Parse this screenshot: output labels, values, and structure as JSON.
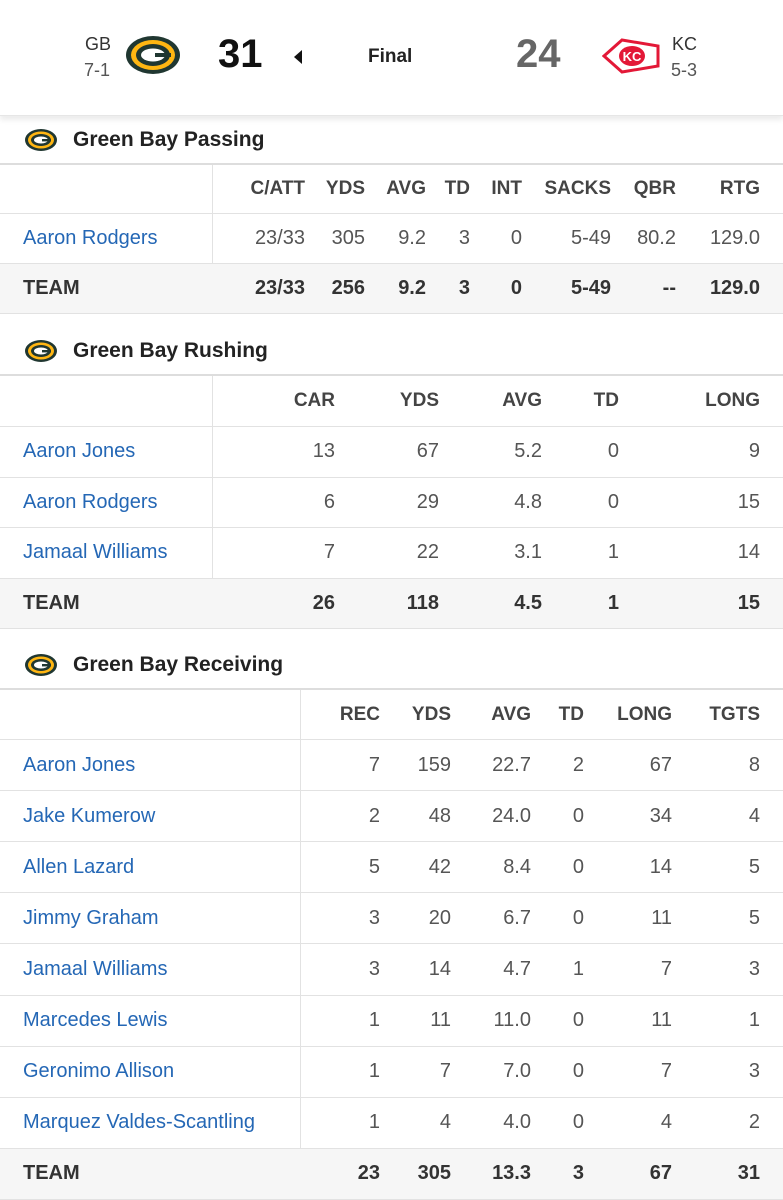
{
  "header": {
    "home": {
      "abbr": "GB",
      "record": "7-1",
      "score": "31"
    },
    "status": "Final",
    "away": {
      "abbr": "KC",
      "record": "5-3",
      "score": "24"
    }
  },
  "sections": [
    {
      "title": "Green Bay Passing",
      "columns": [
        "C/ATT",
        "YDS",
        "AVG",
        "TD",
        "INT",
        "SACKS",
        "QBR",
        "RTG"
      ],
      "rows": [
        {
          "name": "Aaron Rodgers",
          "stats": [
            "23/33",
            "305",
            "9.2",
            "3",
            "0",
            "5-49",
            "80.2",
            "129.0"
          ]
        },
        {
          "name": "TEAM",
          "stats": [
            "23/33",
            "256",
            "9.2",
            "3",
            "0",
            "5-49",
            "--",
            "129.0"
          ]
        }
      ]
    },
    {
      "title": "Green Bay Rushing",
      "columns": [
        "CAR",
        "YDS",
        "AVG",
        "TD",
        "LONG"
      ],
      "rows": [
        {
          "name": "Aaron Jones",
          "stats": [
            "13",
            "67",
            "5.2",
            "0",
            "9"
          ]
        },
        {
          "name": "Aaron Rodgers",
          "stats": [
            "6",
            "29",
            "4.8",
            "0",
            "15"
          ]
        },
        {
          "name": "Jamaal Williams",
          "stats": [
            "7",
            "22",
            "3.1",
            "1",
            "14"
          ]
        },
        {
          "name": "TEAM",
          "stats": [
            "26",
            "118",
            "4.5",
            "1",
            "15"
          ]
        }
      ]
    },
    {
      "title": "Green Bay Receiving",
      "columns": [
        "REC",
        "YDS",
        "AVG",
        "TD",
        "LONG",
        "TGTS"
      ],
      "rows": [
        {
          "name": "Aaron Jones",
          "stats": [
            "7",
            "159",
            "22.7",
            "2",
            "67",
            "8"
          ]
        },
        {
          "name": "Jake Kumerow",
          "stats": [
            "2",
            "48",
            "24.0",
            "0",
            "34",
            "4"
          ]
        },
        {
          "name": "Allen Lazard",
          "stats": [
            "5",
            "42",
            "8.4",
            "0",
            "14",
            "5"
          ]
        },
        {
          "name": "Jimmy Graham",
          "stats": [
            "3",
            "20",
            "6.7",
            "0",
            "11",
            "5"
          ]
        },
        {
          "name": "Jamaal Williams",
          "stats": [
            "3",
            "14",
            "4.7",
            "1",
            "7",
            "3"
          ]
        },
        {
          "name": "Marcedes Lewis",
          "stats": [
            "1",
            "11",
            "11.0",
            "0",
            "11",
            "1"
          ]
        },
        {
          "name": "Geronimo Allison",
          "stats": [
            "1",
            "7",
            "7.0",
            "0",
            "7",
            "3"
          ]
        },
        {
          "name": "Marquez Valdes-Scantling",
          "stats": [
            "1",
            "4",
            "4.0",
            "0",
            "4",
            "2"
          ]
        },
        {
          "name": "TEAM",
          "stats": [
            "23",
            "305",
            "13.3",
            "3",
            "67",
            "31"
          ]
        }
      ]
    }
  ]
}
